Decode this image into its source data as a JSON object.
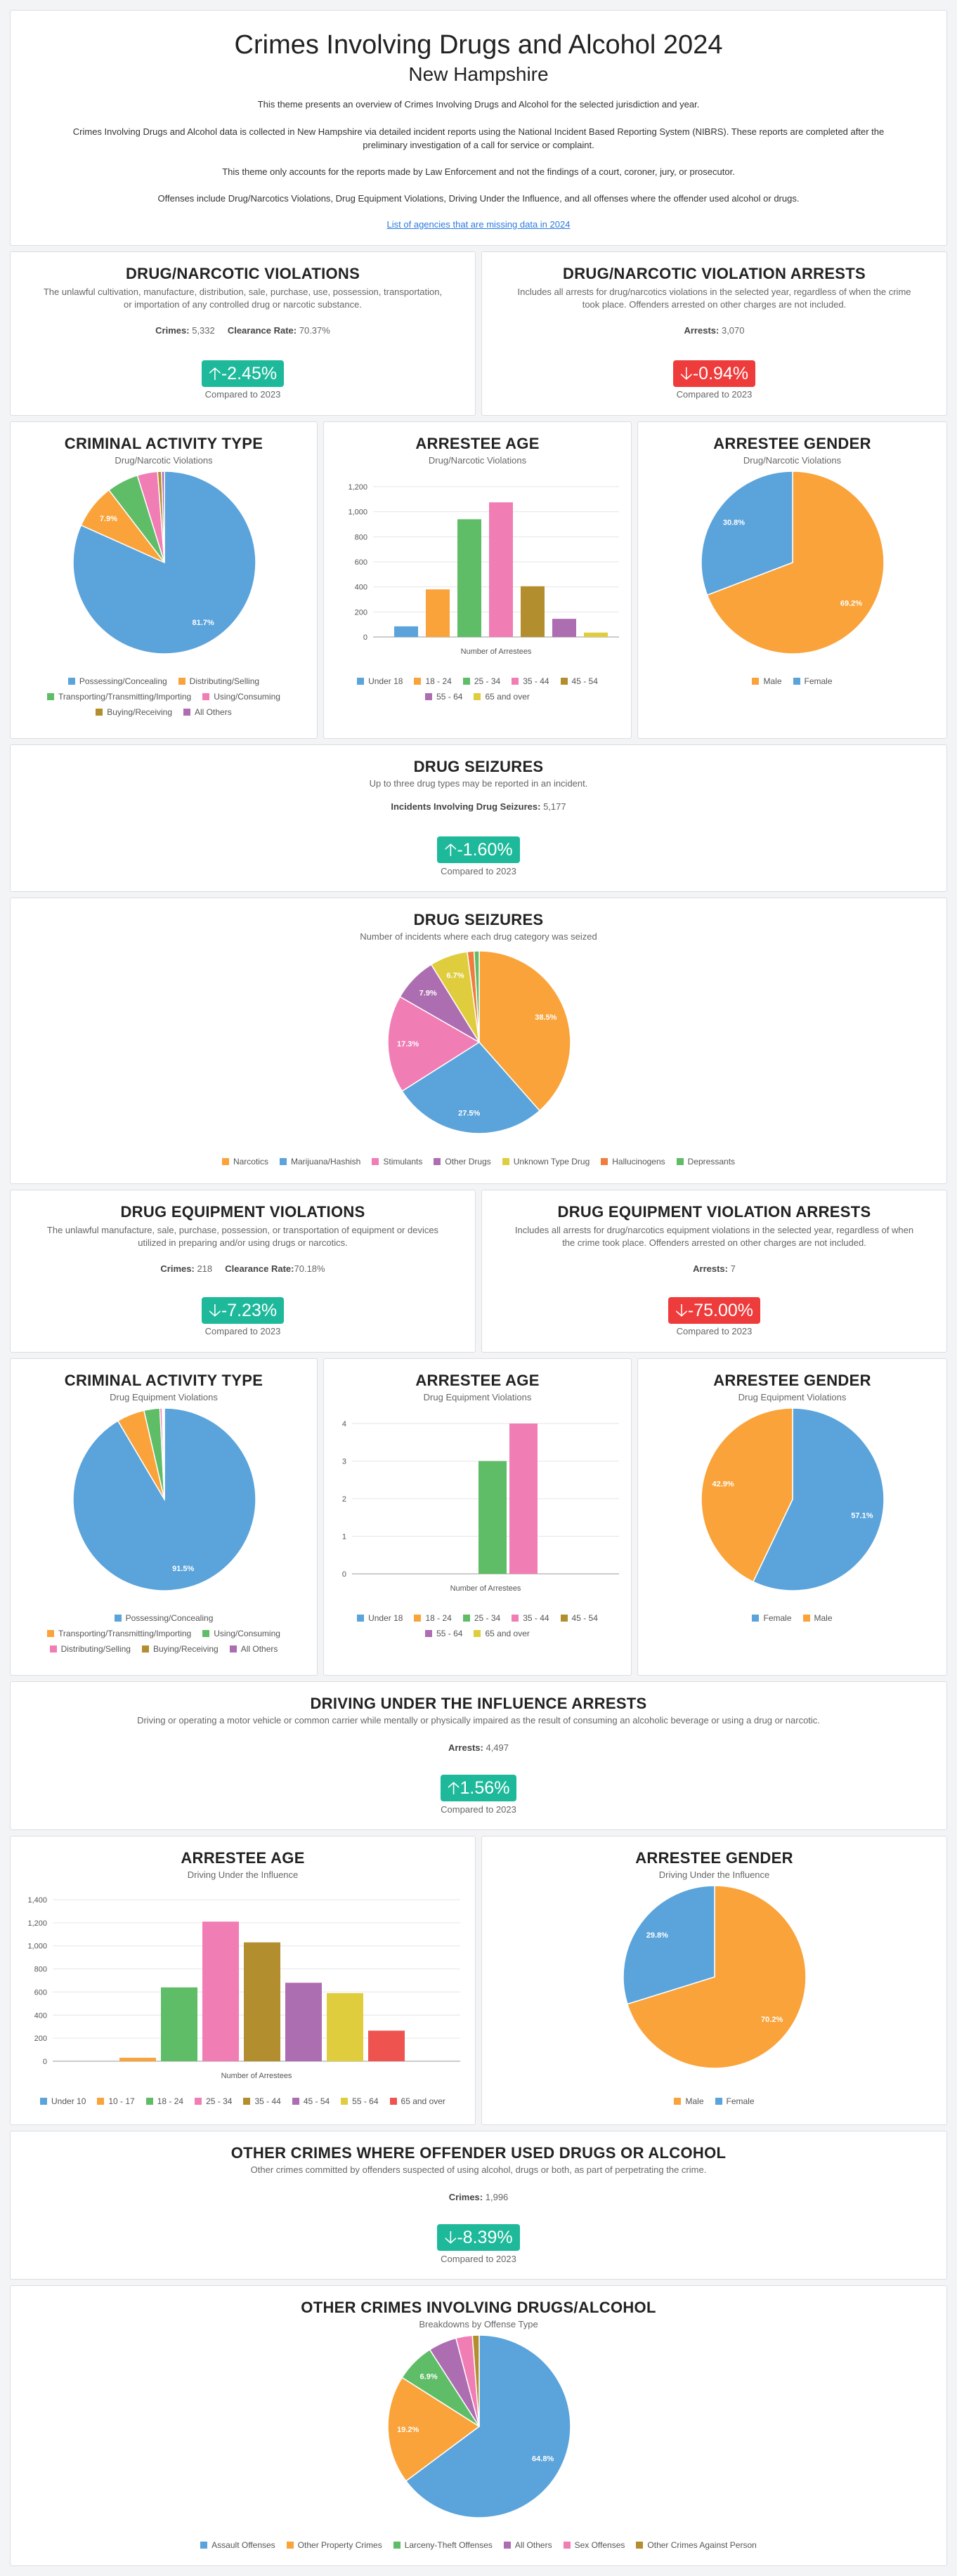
{
  "header": {
    "title": "Crimes Involving Drugs and Alcohol 2024",
    "state": "New Hampshire",
    "p1": "This theme presents an overview of Crimes Involving Drugs and Alcohol for the selected jurisdiction and year.",
    "p2": "Crimes Involving Drugs and Alcohol data is collected in New Hampshire via detailed incident reports using the National Incident Based Reporting System (NIBRS). These reports are completed after the preliminary investigation of a call for service or complaint.",
    "p3": "This theme only accounts for the reports made by Law Enforcement and not the findings of a court, coroner, jury, or prosecutor.",
    "p4": "Offenses include Drug/Narcotics Violations, Drug Equipment Violations, Driving Under the Influence, and all offenses where the offender used alcohol or drugs.",
    "link": "List of agencies that are missing data in 2024"
  },
  "colors": {
    "blue": "#5aa3db",
    "orange": "#f9a33a",
    "green": "#5fbc67",
    "pink": "#f07db4",
    "olive": "#b38e2e",
    "purple": "#ac6db1",
    "yellow": "#dfcd3d",
    "red": "#ef5350",
    "teal": "#1eb99a"
  },
  "labels": {
    "compared": "Compared to 2023",
    "crimes": "Crimes:",
    "clearance": "Clearance Rate:",
    "arrests": "Arrests:",
    "seizures_label": "Incidents Involving Drug Seizures:"
  },
  "drug_violations": {
    "title": "DRUG/NARCOTIC VIOLATIONS",
    "desc": "The unlawful cultivation, manufacture, distribution, sale, purchase, use, possession, transportation, or importation of any controlled drug or narcotic substance.",
    "crimes": "5,332",
    "clearance": "70.37%",
    "change": "-2.45%"
  },
  "drug_arrests": {
    "title": "DRUG/NARCOTIC VIOLATION ARRESTS",
    "desc": "Includes all arrests for drug/narcotics violations in the selected year, regardless of when the crime took place. Offenders arrested on other charges are not included.",
    "arrests": "3,070",
    "change": "-0.94%"
  },
  "seizures": {
    "title": "DRUG SEIZURES",
    "desc": "Up to three drug types may be reported in an incident.",
    "count": "5,177",
    "change": "-1.60%"
  },
  "equip_violations": {
    "title": "DRUG EQUIPMENT VIOLATIONS",
    "desc": "The unlawful manufacture, sale, purchase, possession, or transportation of equipment or devices utilized in preparing and/or using drugs or narcotics.",
    "crimes": "218",
    "clearance": "70.18%",
    "change": "-7.23%"
  },
  "equip_arrests": {
    "title": "DRUG EQUIPMENT VIOLATION ARRESTS",
    "desc": "Includes all arrests for drug/narcotics equipment violations in the selected year, regardless of when the crime took place. Offenders arrested on other charges are not included.",
    "arrests": "7",
    "change": "-75.00%"
  },
  "dui": {
    "title": "DRIVING UNDER THE INFLUENCE ARRESTS",
    "desc": "Driving or operating a motor vehicle or common carrier while mentally or physically impaired as the result of consuming an alcoholic beverage or using a drug or narcotic.",
    "arrests": "4,497",
    "change": "1.56%"
  },
  "other_crimes": {
    "title": "OTHER CRIMES WHERE OFFENDER USED DRUGS OR ALCOHOL",
    "desc": "Other crimes committed by offenders suspected of using alcohol, drugs or both, as part of perpetrating the crime.",
    "crimes": "1,996",
    "change": "-8.39%"
  },
  "chart_data": [
    {
      "id": "c1",
      "type": "pie",
      "title": "CRIMINAL ACTIVITY TYPE",
      "subtitle": "Drug/Narcotic Violations",
      "categories": [
        "Possessing/Concealing",
        "Distributing/Selling",
        "Transporting/Transmitting/Importing",
        "Using/Consuming",
        "Buying/Receiving",
        "All Others"
      ],
      "values": [
        81.7,
        7.9,
        5.6,
        3.6,
        0.7,
        0.5
      ],
      "colors": [
        "#5aa3db",
        "#f9a33a",
        "#5fbc67",
        "#f07db4",
        "#b38e2e",
        "#ac6db1"
      ],
      "slice_labels": [
        "81.7%",
        "7.9%",
        "",
        "",
        "",
        ""
      ],
      "legend_rows": [
        [
          0,
          1
        ],
        [
          2,
          3
        ],
        [
          4,
          5
        ]
      ]
    },
    {
      "id": "c2",
      "type": "bar",
      "title": "ARRESTEE AGE",
      "subtitle": "Drug/Narcotic Violations",
      "categories": [
        "Under 18",
        "18 - 24",
        "25 - 34",
        "35 - 44",
        "45 - 54",
        "55 - 64",
        "65 and over"
      ],
      "values": [
        85,
        380,
        940,
        1075,
        405,
        145,
        35
      ],
      "colors": [
        "#5aa3db",
        "#f9a33a",
        "#5fbc67",
        "#f07db4",
        "#b38e2e",
        "#ac6db1",
        "#dfcd3d"
      ],
      "yticks": [
        "0",
        "200",
        "400",
        "600",
        "800",
        "1,000",
        "1,200"
      ],
      "ylim": [
        0,
        1200
      ],
      "xlabel": "Number of Arrestees",
      "legend_rows": [
        [
          0,
          1,
          2,
          3,
          4
        ],
        [
          5,
          6
        ]
      ]
    },
    {
      "id": "c3",
      "type": "pie",
      "title": "ARRESTEE GENDER",
      "subtitle": "Drug/Narcotic Violations",
      "categories": [
        "Male",
        "Female"
      ],
      "values": [
        69.2,
        30.8
      ],
      "colors": [
        "#f9a33a",
        "#5aa3db"
      ],
      "slice_labels": [
        "69.2%",
        "30.8%"
      ],
      "legend_rows": [
        [
          0,
          1
        ]
      ]
    },
    {
      "id": "c4",
      "type": "pie",
      "title": "DRUG SEIZURES",
      "subtitle": "Number of incidents where each drug category was seized",
      "categories": [
        "Narcotics",
        "Marijuana/Hashish",
        "Stimulants",
        "Other Drugs",
        "Unknown Type Drug",
        "Hallucinogens",
        "Depressants"
      ],
      "values": [
        38.5,
        27.5,
        17.3,
        7.9,
        6.7,
        1.2,
        0.9
      ],
      "colors": [
        "#f9a33a",
        "#5aa3db",
        "#f07db4",
        "#ac6db1",
        "#dfcd3d",
        "#ef7d3e",
        "#5fbc67"
      ],
      "slice_labels": [
        "38.5%",
        "27.5%",
        "17.3%",
        "7.9%",
        "6.7%",
        "",
        ""
      ],
      "legend_rows": [
        [
          0,
          1,
          2,
          3,
          4,
          5,
          6
        ]
      ]
    },
    {
      "id": "c5",
      "type": "pie",
      "title": "CRIMINAL ACTIVITY TYPE",
      "subtitle": "Drug Equipment Violations",
      "categories": [
        "Possessing/Concealing",
        "Transporting/Transmitting/Importing",
        "Using/Consuming",
        "Distributing/Selling",
        "Buying/Receiving",
        "All Others"
      ],
      "values": [
        91.5,
        4.9,
        2.8,
        0.4,
        0.2,
        0.2
      ],
      "colors": [
        "#5aa3db",
        "#f9a33a",
        "#5fbc67",
        "#f07db4",
        "#b38e2e",
        "#ac6db1"
      ],
      "slice_labels": [
        "91.5%",
        "",
        "",
        "",
        "",
        ""
      ],
      "legend_rows": [
        [
          0
        ],
        [
          1,
          2
        ],
        [
          3,
          4,
          5
        ]
      ]
    },
    {
      "id": "c6",
      "type": "bar",
      "title": "ARRESTEE AGE",
      "subtitle": "Drug Equipment Violations",
      "categories": [
        "Under 18",
        "18 - 24",
        "25 - 34",
        "35 - 44",
        "45 - 54",
        "55 - 64",
        "65 and over"
      ],
      "values": [
        0,
        0,
        3,
        4,
        0,
        0,
        0
      ],
      "colors": [
        "#5aa3db",
        "#f9a33a",
        "#5fbc67",
        "#f07db4",
        "#b38e2e",
        "#ac6db1",
        "#dfcd3d"
      ],
      "yticks": [
        "0",
        "1",
        "2",
        "3",
        "4"
      ],
      "ylim": [
        0,
        4
      ],
      "xlabel": "Number of Arrestees",
      "legend_rows": [
        [
          0,
          1,
          2,
          3,
          4
        ],
        [
          5,
          6
        ]
      ]
    },
    {
      "id": "c7",
      "type": "pie",
      "title": "ARRESTEE GENDER",
      "subtitle": "Drug Equipment Violations",
      "categories": [
        "Female",
        "Male"
      ],
      "values": [
        57.1,
        42.9
      ],
      "colors": [
        "#5aa3db",
        "#f9a33a"
      ],
      "slice_labels": [
        "57.1%",
        "42.9%"
      ],
      "legend_rows": [
        [
          0,
          1
        ]
      ]
    },
    {
      "id": "c8",
      "type": "bar",
      "title": "ARRESTEE AGE",
      "subtitle": "Driving Under the Influence",
      "categories": [
        "Under 10",
        "10 - 17",
        "18 - 24",
        "25 - 34",
        "35 - 44",
        "45 - 54",
        "55 - 64",
        "65 and over"
      ],
      "values": [
        0,
        30,
        640,
        1210,
        1030,
        680,
        590,
        265
      ],
      "colors": [
        "#5aa3db",
        "#f9a33a",
        "#5fbc67",
        "#f07db4",
        "#b38e2e",
        "#ac6db1",
        "#dfcd3d",
        "#ef5350"
      ],
      "yticks": [
        "0",
        "200",
        "400",
        "600",
        "800",
        "1,000",
        "1,200",
        "1,400"
      ],
      "ylim": [
        0,
        1400
      ],
      "xlabel": "Number of Arrestees",
      "legend_rows": [
        [
          0,
          1,
          2,
          3,
          4,
          5,
          6,
          7
        ]
      ]
    },
    {
      "id": "c9",
      "type": "pie",
      "title": "ARRESTEE GENDER",
      "subtitle": "Driving Under the Influence",
      "categories": [
        "Male",
        "Female"
      ],
      "values": [
        70.2,
        29.8
      ],
      "colors": [
        "#f9a33a",
        "#5aa3db"
      ],
      "slice_labels": [
        "70.2%",
        "29.8%"
      ],
      "legend_rows": [
        [
          0,
          1
        ]
      ]
    },
    {
      "id": "c10",
      "type": "pie",
      "title": "OTHER CRIMES INVOLVING DRUGS/ALCOHOL",
      "subtitle": "Breakdowns by Offense Type",
      "categories": [
        "Assault Offenses",
        "Other Property Crimes",
        "Larceny-Theft Offenses",
        "All Others",
        "Sex Offenses",
        "Other Crimes Against Person"
      ],
      "values": [
        64.8,
        19.2,
        6.9,
        5.0,
        2.9,
        1.2
      ],
      "colors": [
        "#5aa3db",
        "#f9a33a",
        "#5fbc67",
        "#ac6db1",
        "#f07db4",
        "#b38e2e"
      ],
      "slice_labels": [
        "64.8%",
        "19.2%",
        "6.9%",
        "",
        "",
        ""
      ],
      "legend_rows": [
        [
          0,
          1,
          2,
          3,
          4,
          5
        ]
      ]
    }
  ]
}
